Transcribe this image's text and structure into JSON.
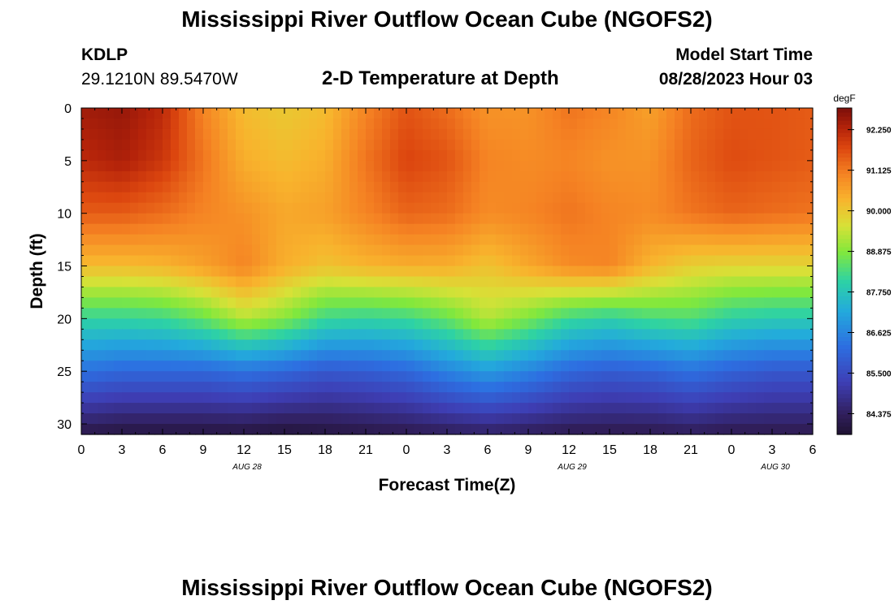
{
  "header": {
    "title": "Mississippi River Outflow Ocean Cube (NGOFS2)",
    "station_id": "KDLP",
    "station_coords": "29.1210N  89.5470W",
    "plot_title": "2-D Temperature at Depth",
    "model_start_label": "Model Start Time",
    "model_start_value": "08/28/2023 Hour 03"
  },
  "footer": {
    "title": "Mississippi River Outflow Ocean Cube (NGOFS2)"
  },
  "chart_data": {
    "type": "heatmap",
    "xlabel": "Forecast Time(Z)",
    "ylabel": "Depth (ft)",
    "x_tick_labels": [
      "0",
      "3",
      "6",
      "9",
      "12",
      "15",
      "18",
      "21",
      "0",
      "3",
      "6",
      "9",
      "12",
      "15",
      "18",
      "21",
      "0",
      "3",
      "6"
    ],
    "date_labels": [
      {
        "label": "AUG 28",
        "hour": 12
      },
      {
        "label": "AUG 29",
        "hour": 36
      },
      {
        "label": "AUG 30",
        "hour": 51
      }
    ],
    "xlim": [
      0,
      54
    ],
    "ylim": [
      0,
      31
    ],
    "y_ticks": [
      0,
      5,
      10,
      15,
      20,
      25,
      30
    ],
    "y_reversed": true,
    "colorbar": {
      "unit": "degF",
      "min": 83.8,
      "max": 92.85,
      "tick_labels": [
        "92.250",
        "91.125",
        "90.000",
        "88.875",
        "87.750",
        "86.625",
        "85.500",
        "84.375"
      ],
      "tick_values": [
        92.25,
        91.125,
        90.0,
        88.875,
        87.75,
        86.625,
        85.5,
        84.375
      ]
    },
    "hours": [
      0,
      3,
      6,
      9,
      12,
      15,
      18,
      21,
      24,
      27,
      30,
      33,
      36,
      39,
      42,
      45,
      48,
      51,
      54
    ],
    "depths": [
      0,
      5,
      10,
      15,
      20,
      25,
      31
    ],
    "values": [
      [
        92.5,
        92.6,
        92.2,
        91.0,
        90.2,
        90.0,
        90.2,
        91.0,
        91.6,
        91.3,
        90.8,
        90.8,
        91.2,
        91.0,
        90.6,
        91.3,
        91.6,
        91.6,
        91.5
      ],
      [
        92.2,
        92.4,
        92.0,
        91.2,
        90.4,
        90.2,
        90.4,
        91.2,
        91.8,
        91.6,
        91.0,
        90.9,
        91.0,
        90.8,
        90.8,
        91.4,
        91.7,
        91.6,
        91.5
      ],
      [
        91.5,
        91.5,
        91.3,
        91.0,
        90.8,
        90.5,
        90.6,
        91.0,
        91.4,
        91.3,
        90.9,
        91.0,
        91.2,
        91.0,
        90.9,
        91.2,
        91.4,
        91.3,
        91.2
      ],
      [
        90.2,
        90.2,
        90.3,
        90.6,
        91.0,
        90.4,
        90.1,
        90.3,
        90.4,
        90.4,
        90.1,
        90.5,
        90.9,
        91.0,
        90.3,
        89.9,
        89.8,
        89.8,
        89.8
      ],
      [
        88.1,
        88.1,
        88.2,
        88.6,
        89.3,
        88.9,
        88.2,
        88.1,
        88.2,
        88.6,
        89.3,
        88.8,
        88.2,
        88.0,
        88.3,
        88.4,
        88.0,
        87.9,
        87.9
      ],
      [
        86.3,
        86.1,
        86.1,
        86.1,
        86.3,
        86.1,
        85.8,
        85.9,
        86.1,
        86.6,
        87.0,
        86.6,
        86.1,
        85.9,
        86.0,
        86.3,
        86.0,
        85.8,
        85.8
      ],
      [
        84.1,
        84.0,
        84.0,
        84.0,
        84.0,
        83.9,
        84.0,
        84.1,
        84.2,
        84.3,
        84.4,
        84.3,
        84.2,
        84.2,
        84.2,
        84.3,
        84.2,
        84.2,
        84.2
      ]
    ]
  }
}
